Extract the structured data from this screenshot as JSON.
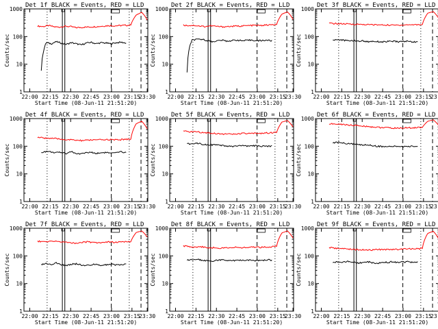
{
  "figure": {
    "background": "#ffffff",
    "series_colors": {
      "events": "#000000",
      "lld": "#ff0000"
    }
  },
  "chart_data": [
    {
      "type": "line",
      "title": "Det 1f BLACK = Events, RED = LLD",
      "ylabel": "Counts/sec",
      "xlabel": "Start Time (08-Jun-11 21:51:20)",
      "yscale": "log",
      "ylim": [
        1,
        1000
      ],
      "x_tick_labels": [
        "22:00",
        "22:15",
        "22:30",
        "22:45",
        "23:00",
        "23:15",
        "23:30"
      ],
      "y_tick_labels": [
        "1",
        "10",
        "100",
        "1000"
      ],
      "series": [
        {
          "color": "#ff0000",
          "values": [
            240,
            230,
            250,
            225,
            220,
            235,
            230,
            210,
            215,
            220,
            225,
            230,
            240,
            250,
            245,
            250,
            255,
            260,
            600,
            750,
            400
          ]
        },
        {
          "color": "#000000",
          "values": [
            6,
            60,
            55,
            65,
            58,
            52,
            60,
            55,
            50,
            58,
            62,
            55,
            60,
            58,
            55,
            60,
            62,
            58
          ]
        }
      ]
    },
    {
      "type": "line",
      "title": "Det 2f BLACK = Events, RED = LLD",
      "ylabel": "Counts/sec",
      "xlabel": "Start Time (08-Jun-11 21:51:20)",
      "yscale": "log",
      "ylim": [
        1,
        1000
      ],
      "x_tick_labels": [
        "22:00",
        "22:15",
        "22:30",
        "22:45",
        "23:00",
        "23:15",
        "23:30"
      ],
      "y_tick_labels": [
        "1",
        "10",
        "100",
        "1000"
      ],
      "series": [
        {
          "color": "#ff0000",
          "values": [
            260,
            250,
            255,
            240,
            230,
            245,
            235,
            225,
            230,
            235,
            240,
            245,
            250,
            255,
            250,
            260,
            265,
            270,
            650,
            780,
            420
          ]
        },
        {
          "color": "#000000",
          "values": [
            5,
            75,
            78,
            80,
            72,
            65,
            70,
            74,
            68,
            72,
            75,
            70,
            72,
            75,
            70,
            72,
            74,
            70
          ]
        }
      ]
    },
    {
      "type": "line",
      "title": "Det 3f BLACK = Events, RED = LLD",
      "ylabel": "Counts/sec",
      "xlabel": "Start Time (08-Jun-11 21:51:20)",
      "yscale": "log",
      "ylim": [
        1,
        1000
      ],
      "x_tick_labels": [
        "22:00",
        "22:15",
        "22:30",
        "22:45",
        "23:00",
        "23:15",
        "23:30"
      ],
      "y_tick_labels": [
        "1",
        "10",
        "100",
        "1000"
      ],
      "series": [
        {
          "color": "#ff0000",
          "values": [
            300,
            295,
            290,
            285,
            280,
            278,
            275,
            270,
            268,
            265,
            262,
            260,
            258,
            262,
            265,
            268,
            270,
            272,
            700,
            800,
            450
          ]
        },
        {
          "color": "#000000",
          "values": [
            75,
            78,
            74,
            70,
            72,
            68,
            70,
            65,
            68,
            66,
            64,
            66,
            68,
            65,
            66,
            68,
            64,
            66
          ]
        }
      ]
    },
    {
      "type": "line",
      "title": "Det 4f BLACK = Events, RED = LLD",
      "ylabel": "Counts/sec",
      "xlabel": "Start Time (08-Jun-11 21:51:20)",
      "yscale": "log",
      "ylim": [
        1,
        1000
      ],
      "x_tick_labels": [
        "22:00",
        "22:15",
        "22:30",
        "22:45",
        "23:00",
        "23:15",
        "23:30"
      ],
      "y_tick_labels": [
        "1",
        "10",
        "100",
        "1000"
      ],
      "series": [
        {
          "color": "#ff0000",
          "values": [
            210,
            200,
            195,
            190,
            180,
            175,
            170,
            165,
            160,
            165,
            170,
            168,
            172,
            175,
            170,
            172,
            178,
            180,
            650,
            800,
            420
          ]
        },
        {
          "color": "#000000",
          "values": [
            60,
            65,
            62,
            58,
            60,
            55,
            65,
            52,
            55,
            58,
            60,
            55,
            58,
            60,
            55,
            58,
            62,
            60
          ]
        }
      ]
    },
    {
      "type": "line",
      "title": "Det 5f BLACK = Events, RED = LLD",
      "ylabel": "Counts/sec",
      "xlabel": "Start Time (08-Jun-11 21:51:20)",
      "yscale": "log",
      "ylim": [
        1,
        1000
      ],
      "x_tick_labels": [
        "22:00",
        "22:15",
        "22:30",
        "22:45",
        "23:00",
        "23:15",
        "23:30"
      ],
      "y_tick_labels": [
        "1",
        "10",
        "100",
        "1000"
      ],
      "series": [
        {
          "color": "#ff0000",
          "values": [
            350,
            330,
            340,
            320,
            310,
            300,
            290,
            280,
            275,
            270,
            280,
            290,
            285,
            290,
            295,
            300,
            305,
            310,
            750,
            850,
            500
          ]
        },
        {
          "color": "#000000",
          "values": [
            120,
            125,
            130,
            120,
            115,
            112,
            110,
            105,
            100,
            98,
            102,
            105,
            100,
            102,
            105,
            100,
            98,
            102
          ]
        }
      ]
    },
    {
      "type": "line",
      "title": "Det 6f BLACK = Events, RED = LLD",
      "ylabel": "Counts/sec",
      "xlabel": "Start Time (08-Jun-11 21:51:20)",
      "yscale": "log",
      "ylim": [
        1,
        1000
      ],
      "x_tick_labels": [
        "22:00",
        "22:15",
        "22:30",
        "22:45",
        "23:00",
        "23:15",
        "23:30"
      ],
      "y_tick_labels": [
        "1",
        "10",
        "100",
        "1000"
      ],
      "series": [
        {
          "color": "#ff0000",
          "values": [
            650,
            630,
            620,
            600,
            580,
            560,
            540,
            520,
            500,
            480,
            470,
            460,
            450,
            455,
            460,
            465,
            470,
            480,
            800,
            900,
            560
          ]
        },
        {
          "color": "#000000",
          "values": [
            135,
            138,
            130,
            125,
            120,
            115,
            110,
            112,
            105,
            100,
            98,
            95,
            98,
            100,
            96,
            98,
            100,
            98
          ]
        }
      ]
    },
    {
      "type": "line",
      "title": "Det 7f BLACK = Events, RED = LLD",
      "ylabel": "Counts/sec",
      "xlabel": "Start Time (08-Jun-11 21:51:20)",
      "yscale": "log",
      "ylim": [
        1,
        1000
      ],
      "x_tick_labels": [
        "22:00",
        "22:15",
        "22:30",
        "22:45",
        "23:00",
        "23:15",
        "23:30"
      ],
      "y_tick_labels": [
        "1",
        "10",
        "100",
        "1000"
      ],
      "series": [
        {
          "color": "#ff0000",
          "values": [
            340,
            330,
            320,
            350,
            330,
            310,
            300,
            290,
            305,
            320,
            310,
            300,
            315,
            320,
            310,
            318,
            322,
            325,
            700,
            800,
            480
          ]
        },
        {
          "color": "#000000",
          "values": [
            48,
            52,
            50,
            55,
            48,
            45,
            50,
            52,
            46,
            44,
            48,
            50,
            46,
            48,
            50,
            47,
            49,
            50
          ]
        }
      ]
    },
    {
      "type": "line",
      "title": "Det 8f BLACK = Events, RED = LLD",
      "ylabel": "Counts/sec",
      "xlabel": "Start Time (08-Jun-11 21:51:20)",
      "yscale": "log",
      "ylim": [
        1,
        1000
      ],
      "x_tick_labels": [
        "22:00",
        "22:15",
        "22:30",
        "22:45",
        "23:00",
        "23:15",
        "23:30"
      ],
      "y_tick_labels": [
        "1",
        "10",
        "100",
        "1000"
      ],
      "series": [
        {
          "color": "#ff0000",
          "values": [
            230,
            220,
            210,
            215,
            205,
            200,
            195,
            190,
            200,
            205,
            200,
            195,
            205,
            210,
            205,
            210,
            215,
            220,
            680,
            800,
            440
          ]
        },
        {
          "color": "#000000",
          "values": [
            70,
            72,
            75,
            70,
            68,
            65,
            70,
            72,
            68,
            66,
            70,
            68,
            72,
            70,
            68,
            70,
            72,
            70
          ]
        }
      ]
    },
    {
      "type": "line",
      "title": "Det 9f BLACK = Events, RED = LLD",
      "ylabel": "Counts/sec",
      "xlabel": "Start Time (08-Jun-11 21:51:20)",
      "yscale": "log",
      "ylim": [
        1,
        1000
      ],
      "x_tick_labels": [
        "22:00",
        "22:15",
        "22:30",
        "22:45",
        "23:00",
        "23:15",
        "23:30"
      ],
      "y_tick_labels": [
        "1",
        "10",
        "100",
        "1000"
      ],
      "series": [
        {
          "color": "#ff0000",
          "values": [
            200,
            190,
            185,
            180,
            175,
            170,
            165,
            160,
            165,
            170,
            168,
            172,
            175,
            172,
            178,
            180,
            182,
            185,
            650,
            780,
            400
          ]
        },
        {
          "color": "#000000",
          "values": [
            55,
            62,
            58,
            65,
            60,
            55,
            58,
            62,
            56,
            54,
            60,
            58,
            62,
            58,
            60,
            62,
            58,
            60
          ]
        }
      ]
    }
  ]
}
